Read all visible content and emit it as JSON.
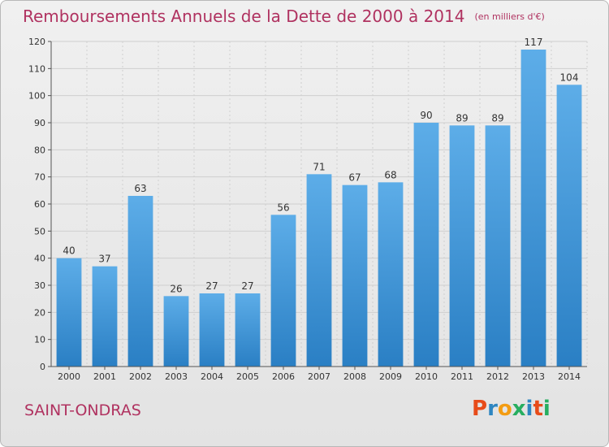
{
  "header": {
    "title": "Remboursements Annuels de la Dette de 2000 à 2014",
    "unit": "(en milliers d'€)"
  },
  "footer": {
    "city": "SAINT-ONDRAS",
    "logo": "Proxiti",
    "logo_colors": [
      "#e74c1a",
      "#2e86c1",
      "#f39c12",
      "#27ae60",
      "#2e86c1",
      "#e74c1a",
      "#27ae60"
    ]
  },
  "colors": {
    "bar_light": "#5dade8",
    "bar_dark": "#2a7fc4",
    "grid": "#cfcfcf",
    "axis": "#555555",
    "text": "#333333",
    "accent": "#b03260"
  },
  "chart_data": {
    "type": "bar",
    "title": "Remboursements Annuels de la Dette de 2000 à 2014",
    "subtitle": "(en milliers d'€)",
    "categories": [
      "2000",
      "2001",
      "2002",
      "2003",
      "2004",
      "2005",
      "2006",
      "2007",
      "2008",
      "2009",
      "2010",
      "2011",
      "2012",
      "2013",
      "2014"
    ],
    "values": [
      40,
      37,
      63,
      26,
      27,
      27,
      56,
      71,
      67,
      68,
      90,
      89,
      89,
      117,
      104
    ],
    "ylim": [
      0,
      120
    ],
    "yticks": [
      0,
      10,
      20,
      30,
      40,
      50,
      60,
      70,
      80,
      90,
      100,
      110,
      120
    ],
    "xlabel": "",
    "ylabel": "",
    "grid": true,
    "legend": "none"
  }
}
